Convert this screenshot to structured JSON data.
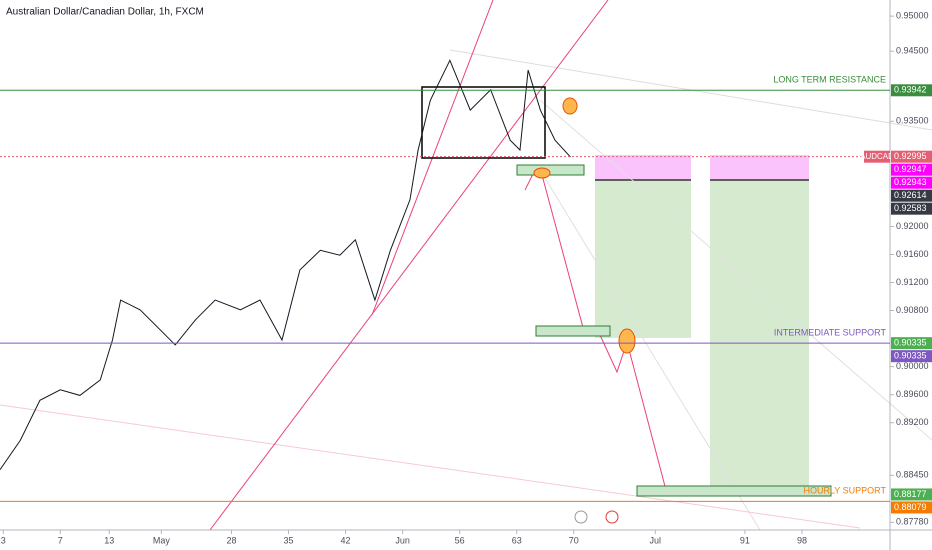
{
  "chart_data": {
    "type": "line",
    "title": "Australian Dollar/Canadian Dollar, 1h, FXCM",
    "x": [
      -0.4,
      2.1,
      4.5,
      7.0,
      9.4,
      11.9,
      13.4,
      14.4,
      16.8,
      19.3,
      21.1,
      23.6,
      26.0,
      29.1,
      31.5,
      34.2,
      36.4,
      38.9,
      41.3,
      43.2,
      45.6,
      47.5,
      49.9,
      50.9,
      52.4,
      54.8,
      57.3,
      59.8,
      62.2,
      63.4,
      64.4,
      65.9,
      67.7,
      69.6
    ],
    "series": [
      {
        "name": "AUDCAD",
        "color": "#131722",
        "values": [
          0.8853,
          0.8895,
          0.8952,
          0.8967,
          0.8959,
          0.8981,
          0.9038,
          0.9095,
          0.9081,
          0.9052,
          0.9031,
          0.9067,
          0.9095,
          0.9081,
          0.9095,
          0.9038,
          0.9138,
          0.9166,
          0.9159,
          0.9181,
          0.9095,
          0.9166,
          0.9238,
          0.9309,
          0.938,
          0.9437,
          0.9366,
          0.9395,
          0.9323,
          0.9309,
          0.9423,
          0.9366,
          0.9323,
          0.9299
        ]
      }
    ],
    "xlim": [
      -0.4,
      108.8
    ],
    "xticks": [
      {
        "value": 0,
        "label": "3"
      },
      7,
      13,
      {
        "value": 19.4,
        "label": "May"
      },
      28,
      35,
      42,
      {
        "value": 49,
        "label": "Jun"
      },
      56,
      63,
      70,
      {
        "value": 80,
        "label": "Jul"
      },
      91,
      98
    ],
    "ylim": [
      0.8767,
      0.9523
    ],
    "yticks": [
      {
        "value": 0.95,
        "label": "0.95000"
      },
      {
        "value": 0.945,
        "label": "0.94500"
      },
      {
        "value": 0.935,
        "label": "0.93500"
      },
      {
        "value": 0.92,
        "label": "0.92000"
      },
      {
        "value": 0.916,
        "label": "0.91600"
      },
      {
        "value": 0.912,
        "label": "0.91200"
      },
      {
        "value": 0.908,
        "label": "0.90800"
      },
      {
        "value": 0.9,
        "label": "0.90000"
      },
      {
        "value": 0.896,
        "label": "0.89600"
      },
      {
        "value": 0.892,
        "label": "0.89200"
      },
      {
        "value": 0.8845,
        "label": "0.88450"
      },
      {
        "value": 0.8778,
        "label": "0.87780"
      }
    ],
    "levels": [
      {
        "value": 0.93942,
        "color": "#388e3c",
        "name": "LONG TERM RESISTANCE",
        "line": true
      },
      {
        "value": 0.92995,
        "color": "#e35f73",
        "name": "AUDCAD",
        "line": true,
        "dotted": true
      },
      {
        "value": 0.92947,
        "color": "#ff00ff"
      },
      {
        "value": 0.92943,
        "color": "#ff00ff"
      },
      {
        "value": 0.92614,
        "color": "#363a45"
      },
      {
        "value": 0.92583,
        "color": "#363a45"
      },
      {
        "value": 0.90335,
        "color": "#4caf50"
      },
      {
        "value": 0.90335,
        "color": "#7e57c2",
        "name": "INTERMEDIATE SUPPORT",
        "line": true
      },
      {
        "value": 0.88177,
        "color": "#4caf50"
      },
      {
        "value": 0.88079,
        "color": "#f57c00",
        "name": "HOURLY SUPPORT",
        "line": true
      }
    ]
  }
}
